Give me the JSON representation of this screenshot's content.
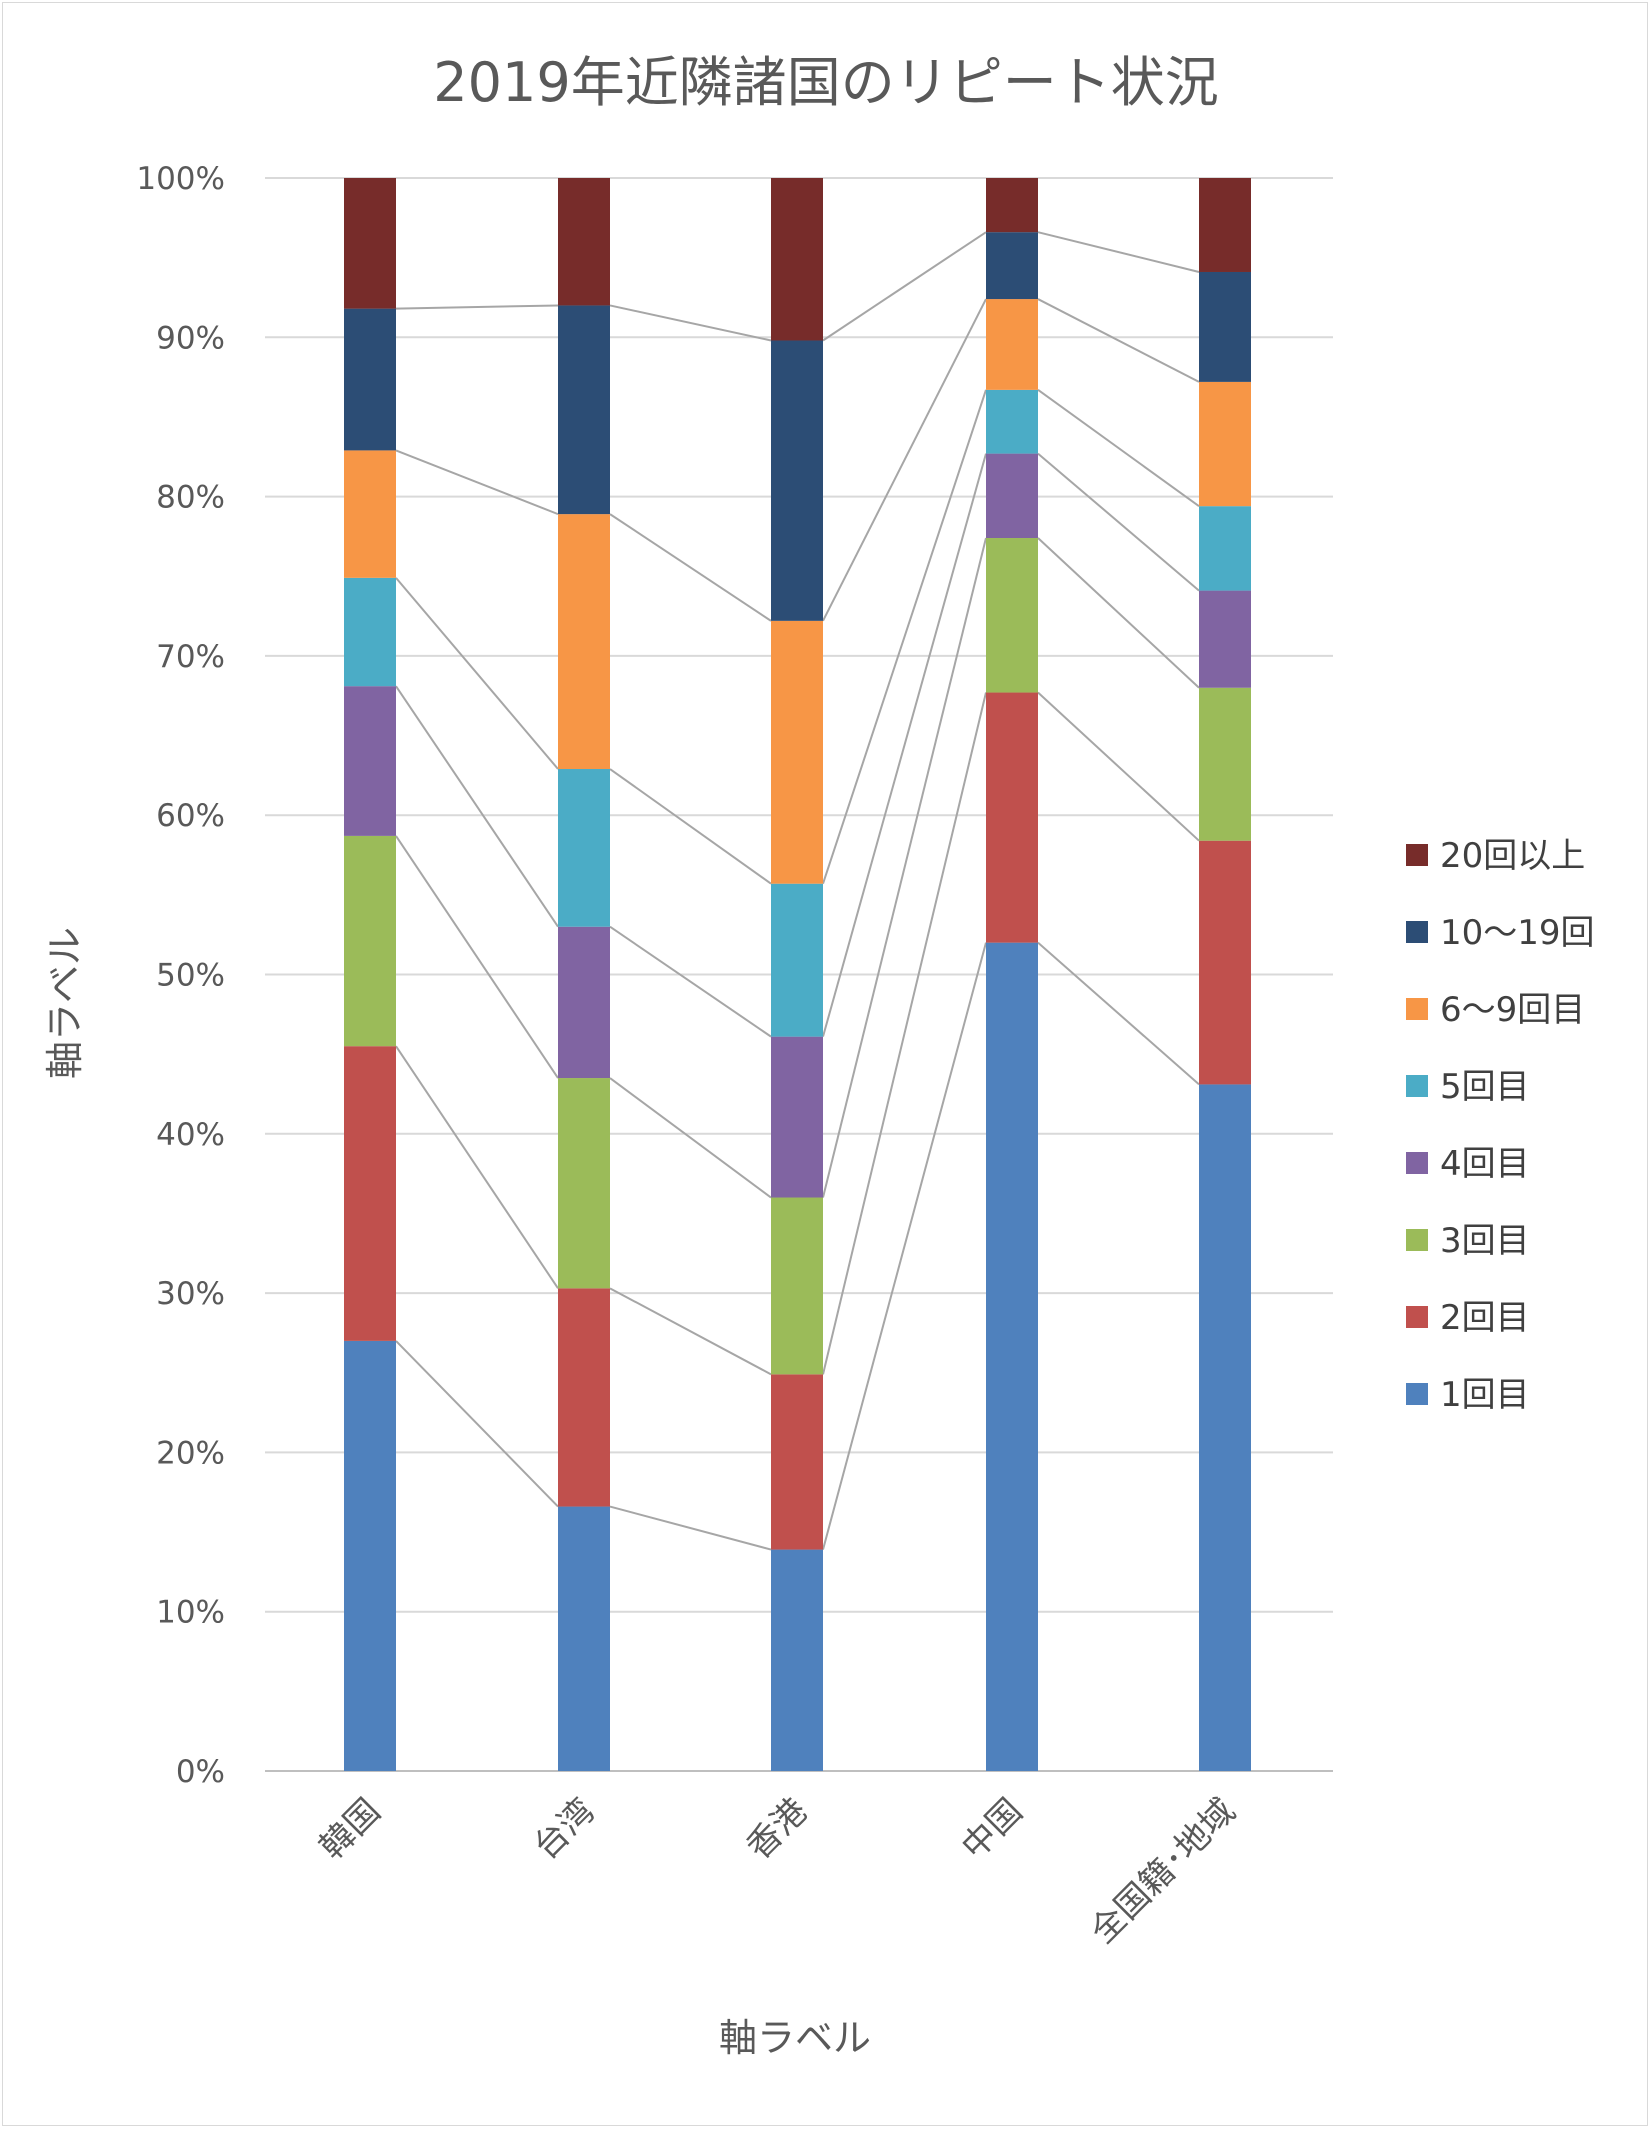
{
  "chart_data": {
    "type": "bar",
    "stacked": true,
    "percent": true,
    "title": "2019年近隣諸国のリピート状況",
    "xlabel": "軸ラベル",
    "ylabel": "軸ラベル",
    "ylim": [
      0,
      100
    ],
    "yticks": [
      "0%",
      "10%",
      "20%",
      "30%",
      "40%",
      "50%",
      "60%",
      "70%",
      "80%",
      "90%",
      "100%"
    ],
    "grid": true,
    "legend_position": "right",
    "series_lines": true,
    "categories": [
      "韓国",
      "台湾",
      "香港",
      "中国",
      "全国籍･地域"
    ],
    "series": [
      {
        "name": "1回目",
        "color": "#4f81bd",
        "values": [
          27.0,
          16.6,
          13.9,
          52.0,
          43.1
        ]
      },
      {
        "name": "2回目",
        "color": "#c0504d",
        "values": [
          18.5,
          13.7,
          11.0,
          15.7,
          15.3
        ]
      },
      {
        "name": "3回目",
        "color": "#9bbb59",
        "values": [
          13.2,
          13.2,
          11.1,
          9.7,
          9.6
        ]
      },
      {
        "name": "4回目",
        "color": "#8064a2",
        "values": [
          9.4,
          9.5,
          10.1,
          5.3,
          6.1
        ]
      },
      {
        "name": "5回目",
        "color": "#4bacc6",
        "values": [
          6.8,
          9.9,
          9.6,
          4.0,
          5.3
        ]
      },
      {
        "name": "6〜9回目",
        "color": "#f79646",
        "values": [
          8.0,
          16.0,
          16.5,
          5.7,
          7.8
        ]
      },
      {
        "name": "10〜19回",
        "color": "#2c4d75",
        "values": [
          8.9,
          13.1,
          17.6,
          4.2,
          6.9
        ]
      },
      {
        "name": "20回以上",
        "color": "#772c2a",
        "values": [
          8.2,
          8.0,
          10.2,
          3.4,
          5.9
        ]
      }
    ]
  }
}
